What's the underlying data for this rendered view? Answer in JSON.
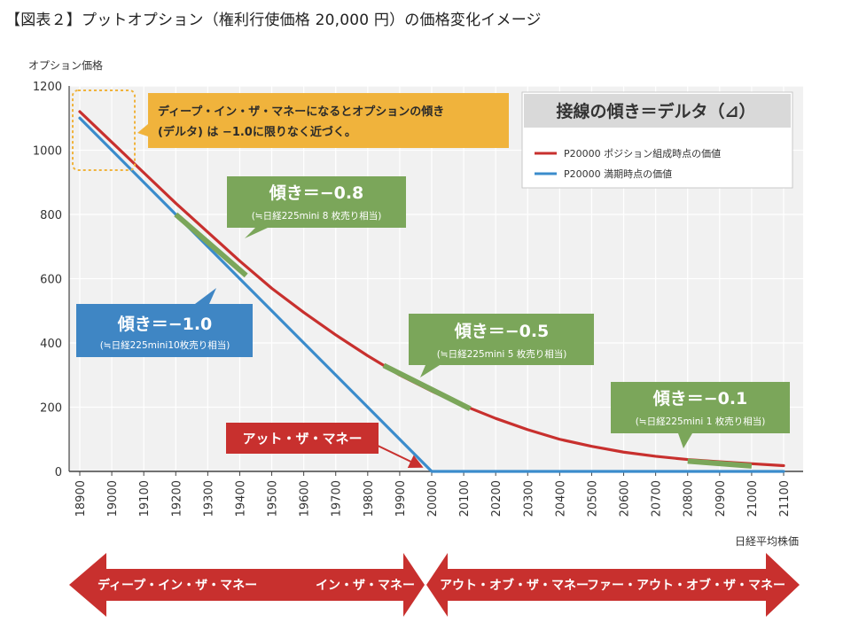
{
  "figure_title": "【図表２】プットオプション（権利行使価格 20,000 円）の価格変化イメージ",
  "colors": {
    "red": "#c8302e",
    "blue": "#3b8ccc",
    "green": "#7ba65a",
    "gold": "#f0b33c",
    "dark_blue": "#3f86c4",
    "banner_red": "#c8302e"
  },
  "chart_data": {
    "type": "line",
    "ylabel": "オプション価格",
    "xlabel": "日経平均株価",
    "ylim": [
      0,
      1200
    ],
    "yticks": [
      0,
      200,
      400,
      600,
      800,
      1000,
      1200
    ],
    "xticks": [
      "18900",
      "19000",
      "19100",
      "19200",
      "19300",
      "19400",
      "19500",
      "19600",
      "19700",
      "19800",
      "19900",
      "20000",
      "20100",
      "20200",
      "20300",
      "20400",
      "20500",
      "20600",
      "20700",
      "20800",
      "20900",
      "21000",
      "21100"
    ],
    "xlim": [
      18900,
      21100
    ],
    "grid": true,
    "legend_title": "接線の傾き＝デルタ（⊿）",
    "legend_position": "top-right",
    "series": [
      {
        "name": "P20000 ポジション組成時点の価値",
        "color": "red",
        "x": [
          18900,
          19000,
          19100,
          19200,
          19300,
          19400,
          19500,
          19600,
          19700,
          19800,
          19900,
          20000,
          20100,
          20200,
          20300,
          20400,
          20500,
          20600,
          20700,
          20800,
          20900,
          21000,
          21100
        ],
        "values": [
          1120,
          1025,
          930,
          835,
          745,
          655,
          570,
          495,
          425,
          360,
          300,
          250,
          205,
          165,
          130,
          100,
          78,
          60,
          47,
          37,
          30,
          24,
          18
        ]
      },
      {
        "name": "P20000 満期時点の価値",
        "color": "blue",
        "x": [
          18900,
          20000,
          21100
        ],
        "values": [
          1100,
          0,
          0
        ]
      }
    ],
    "annotations": [
      {
        "id": "deep",
        "text1": "ディープ・イン・ザ・マネーになるとオプションの傾き",
        "text2": "(デルタ) は −1.0に限りなく近づく。"
      },
      {
        "id": "d10",
        "title": "傾き＝−1.0",
        "sub": "(≒日経225mini10枚売り相当)"
      },
      {
        "id": "d08",
        "title": "傾き＝−0.8",
        "sub": "(≒日経225mini 8 枚売り相当)"
      },
      {
        "id": "d05",
        "title": "傾き＝−0.5",
        "sub": "(≒日経225mini 5 枚売り相当)"
      },
      {
        "id": "d01",
        "title": "傾き＝−0.1",
        "sub": "(≒日経225mini 1 枚売り相当)"
      },
      {
        "id": "atm",
        "text": "アット・ザ・マネー"
      }
    ],
    "tangents": [
      {
        "x": [
          19200,
          19420
        ],
        "y": [
          800,
          610
        ]
      },
      {
        "x": [
          19850,
          20120
        ],
        "y": [
          330,
          195
        ]
      },
      {
        "x": [
          20800,
          21000
        ],
        "y": [
          32,
          17
        ]
      }
    ]
  },
  "banners": {
    "left": {
      "a": "ディープ・イン・ザ・マネー",
      "b": "イン・ザ・マネー"
    },
    "right": {
      "a": "アウト・オブ・ザ・マネー",
      "b": "ファー・アウト・オブ・ザ・マネー"
    }
  }
}
